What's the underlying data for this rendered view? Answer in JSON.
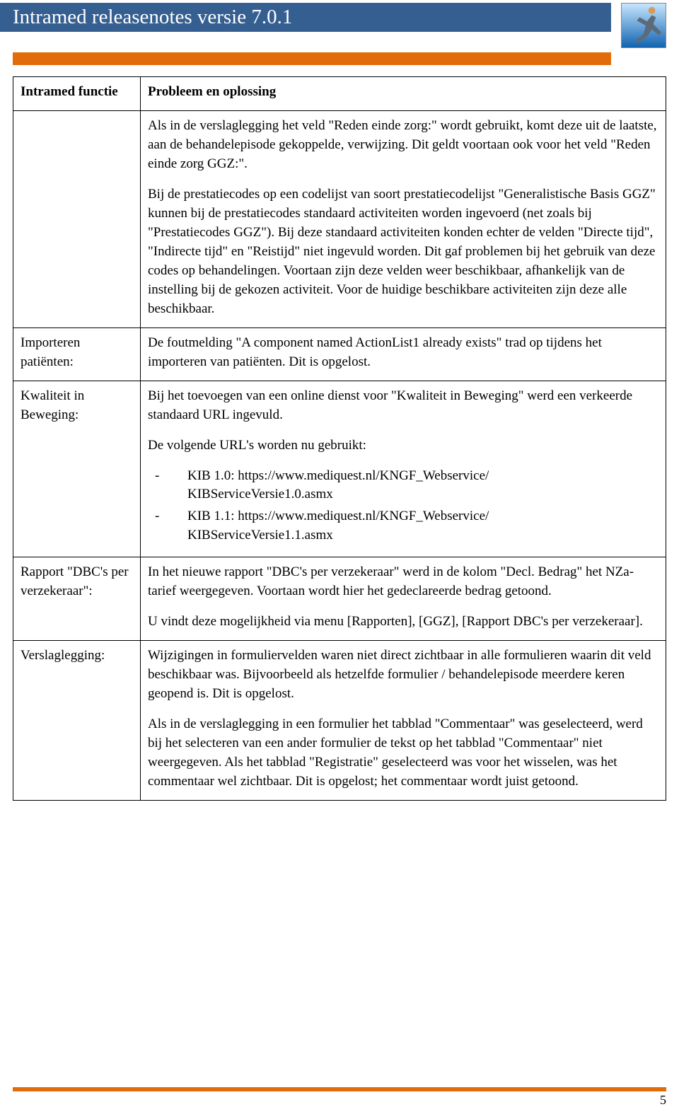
{
  "header": {
    "title": "Intramed releasenotes versie 7.0.1",
    "title_bg": "#365f91",
    "title_color": "#ffffff",
    "accent_bar_color": "#e36c0a"
  },
  "table": {
    "col1_header": "Intramed functie",
    "col2_header": "Probleem en oplossing",
    "rows": [
      {
        "func": "",
        "paras": [
          "Als in de verslaglegging het veld \"Reden einde zorg:\" wordt gebruikt, komt deze uit de laatste, aan de behandelepisode gekoppelde, verwijzing. Dit geldt voortaan ook voor het veld \"Reden einde zorg GGZ:\".",
          "Bij de prestatiecodes op een codelijst van soort prestatiecodelijst \"Generalistische Basis GGZ\" kunnen bij de prestatiecodes standaard activiteiten worden ingevoerd (net zoals bij \"Prestatiecodes GGZ\"). Bij deze standaard activiteiten konden echter de velden \"Directe tijd\", \"Indirecte tijd\" en \"Reistijd\" niet ingevuld worden. Dit gaf problemen bij het gebruik van deze codes op behandelingen. Voortaan zijn deze velden weer beschikbaar, afhankelijk van de instelling bij de gekozen activiteit. Voor de huidige beschikbare activiteiten zijn deze alle beschikbaar."
        ]
      },
      {
        "func": "Importeren patiënten:",
        "paras": [
          "De foutmelding \"A component named ActionList1 already exists\" trad op tijdens het importeren van patiënten. Dit is opgelost."
        ]
      },
      {
        "func": "Kwaliteit in Beweging:",
        "paras": [
          "Bij het toevoegen van een online dienst voor \"Kwaliteit in Beweging\" werd een verkeerde standaard URL ingevuld.",
          "De volgende URL's worden nu gebruikt:"
        ],
        "list": [
          "KIB 1.0: https://www.mediquest.nl/KNGF_Webservice/\nKIBServiceVersie1.0.asmx",
          "KIB 1.1: https://www.mediquest.nl/KNGF_Webservice/\nKIBServiceVersie1.1.asmx"
        ]
      },
      {
        "func": "Rapport \"DBC's per verzekeraar\":",
        "paras": [
          "In het nieuwe rapport \"DBC's per verzekeraar\" werd in de kolom \"Decl. Bedrag\" het NZa-tarief weergegeven. Voortaan wordt hier het gedeclareerde bedrag getoond.",
          "U vindt deze mogelijkheid via menu [Rapporten], [GGZ], [Rapport DBC's per verzekeraar]."
        ]
      },
      {
        "func": "Verslaglegging:",
        "paras": [
          "Wijzigingen in formuliervelden waren niet direct zichtbaar in alle formulieren waarin dit veld beschikbaar was. Bijvoorbeeld als hetzelfde formulier / behandelepisode meerdere keren geopend is. Dit is opgelost.",
          "Als in de verslaglegging in een formulier het tabblad \"Commentaar\" was geselecteerd, werd bij het selecteren van een ander formulier de tekst op het tabblad \"Commentaar\" niet weergegeven. Als het tabblad \"Registratie\" geselecteerd was voor het wisselen, was het commentaar wel zichtbaar. Dit is opgelost; het commentaar wordt juist getoond."
        ]
      }
    ]
  },
  "footer": {
    "page_number": "5"
  }
}
